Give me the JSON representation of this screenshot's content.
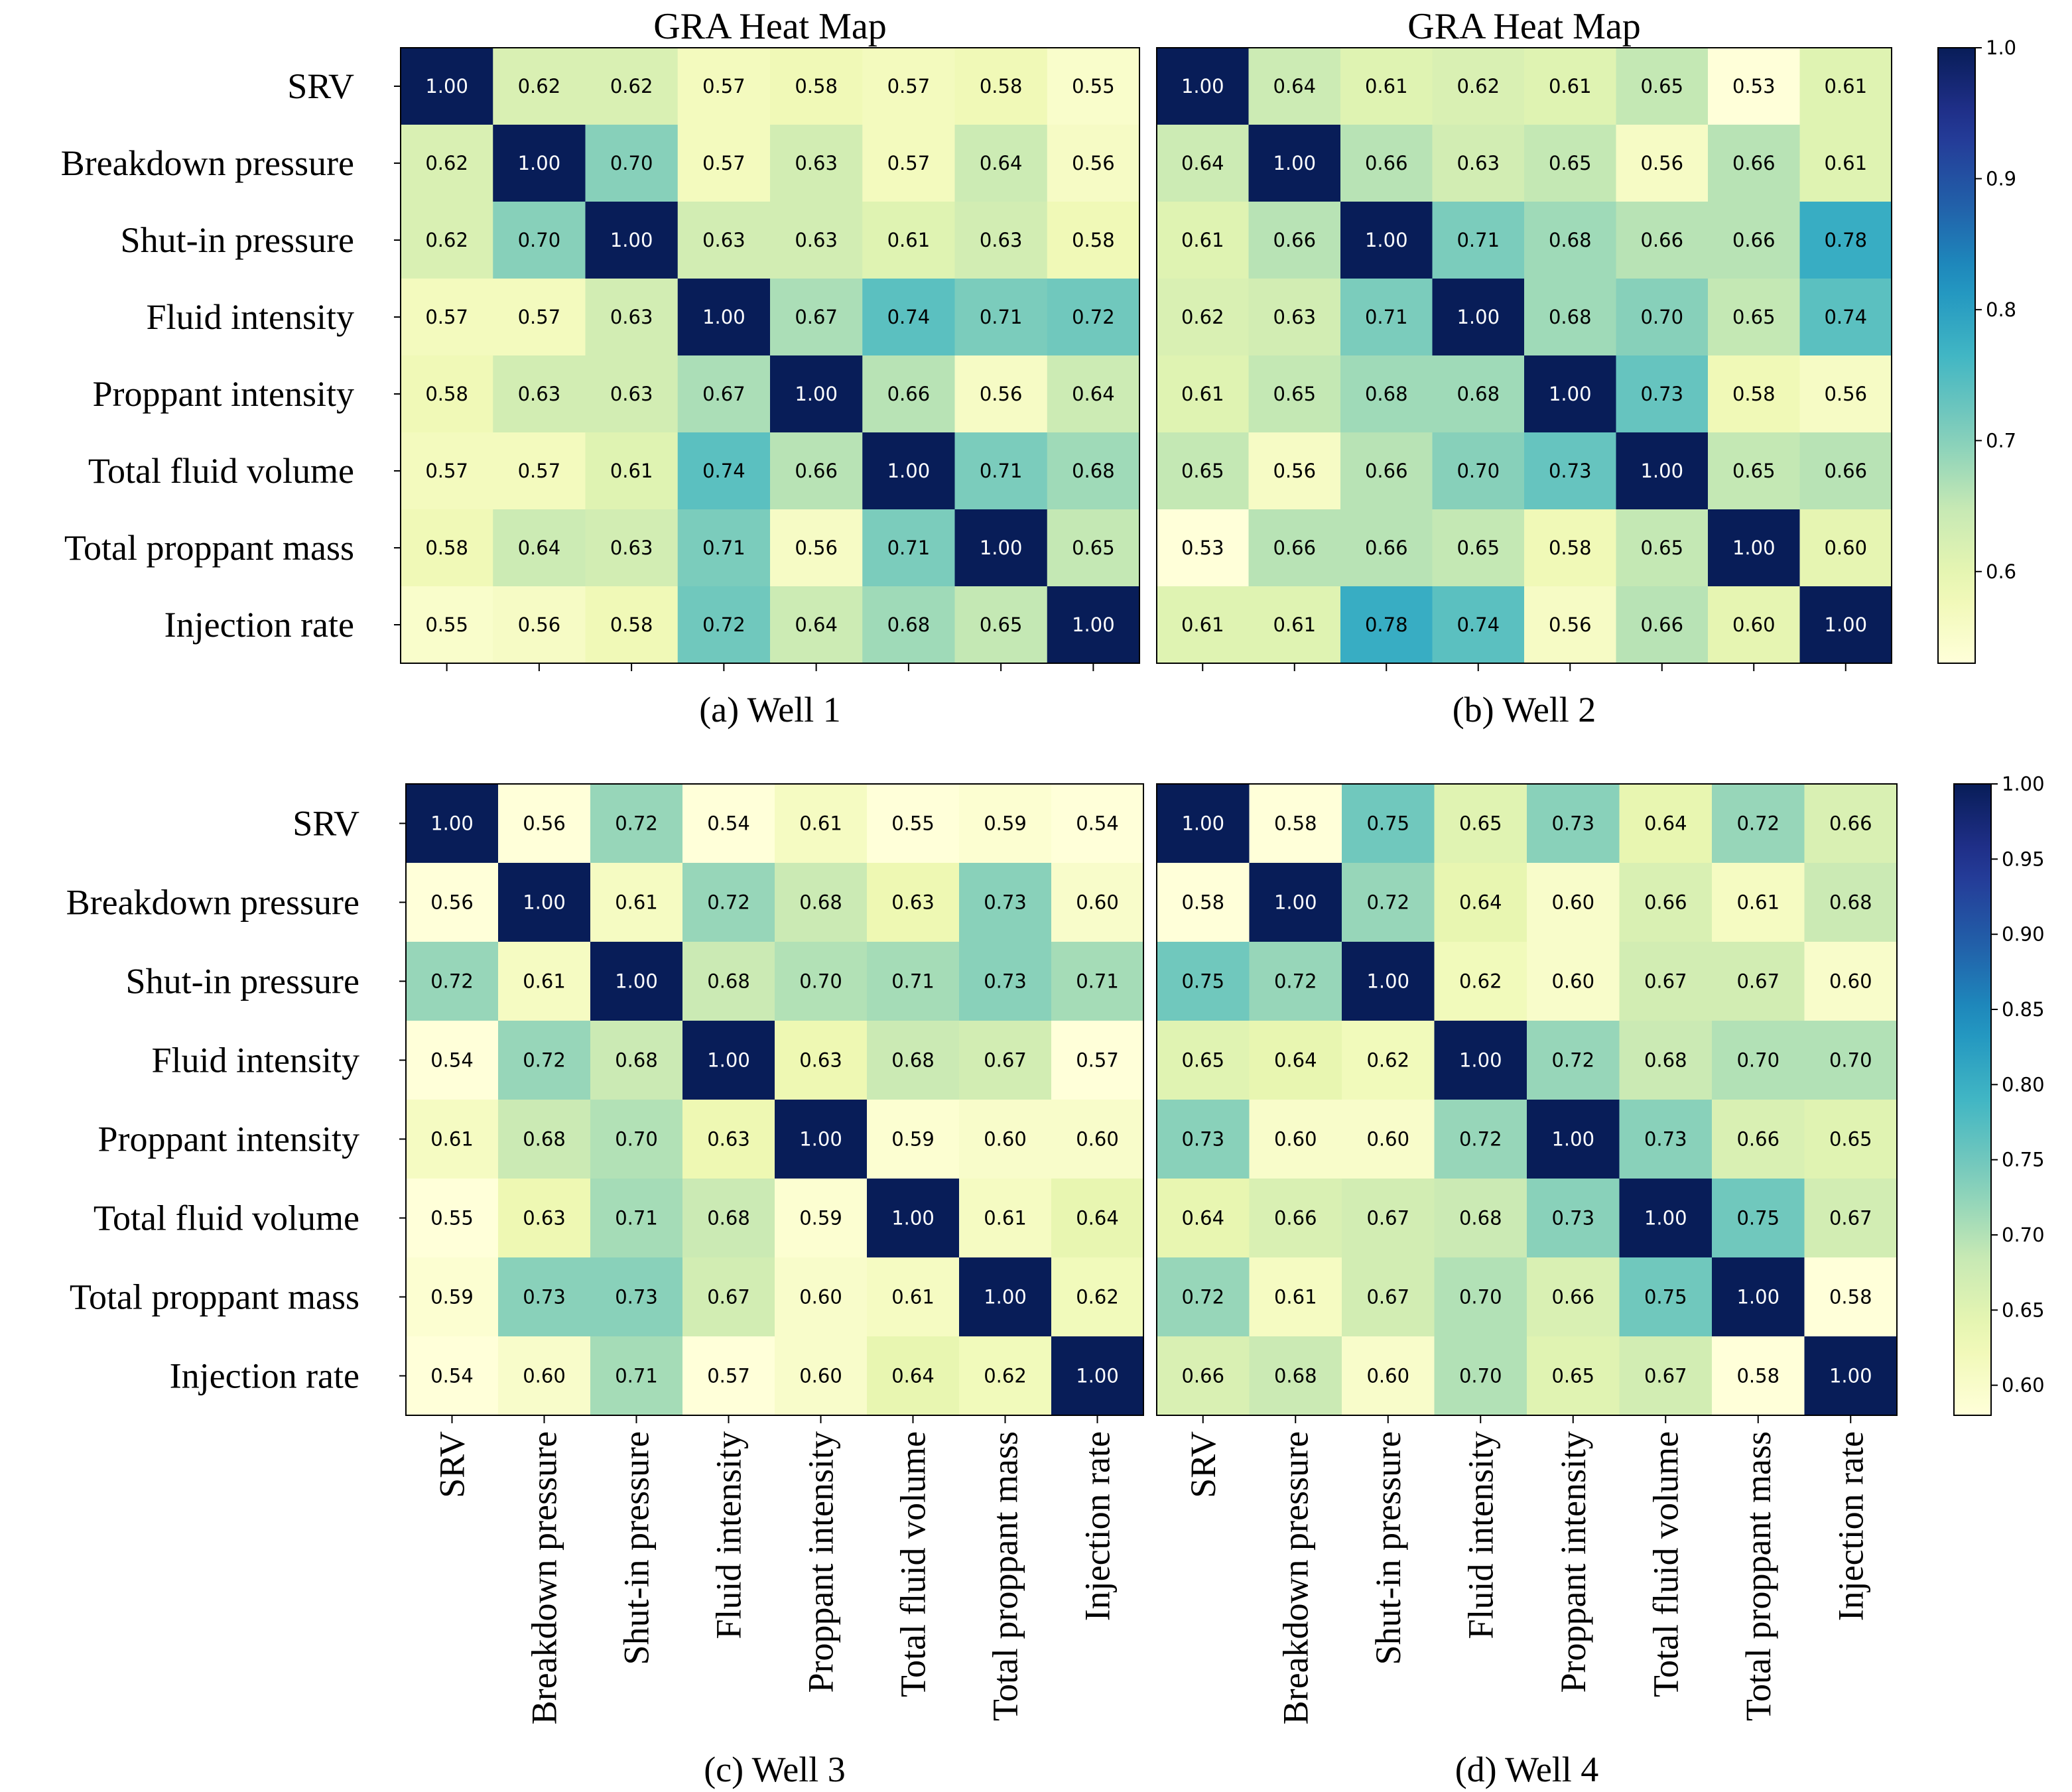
{
  "figure": {
    "variables": [
      "SRV",
      "Breakdown pressure",
      "Shut-in pressure",
      "Fluid intensity",
      "Proppant intensity",
      "Total fluid volume",
      "Total proppant mass",
      "Injection rate"
    ],
    "colormap": [
      "#ffffd9",
      "#edf8b1",
      "#c7e9b4",
      "#7fcdbb",
      "#41b6c4",
      "#1d91c0",
      "#225ea8",
      "#253494",
      "#081d58"
    ]
  },
  "chart_data": [
    {
      "type": "heatmap",
      "title": "GRA Heat Map",
      "caption": "(a) Well 1",
      "value_range": [
        0.53,
        1.0
      ],
      "matrix": [
        [
          1.0,
          0.62,
          0.62,
          0.57,
          0.58,
          0.57,
          0.58,
          0.55
        ],
        [
          0.62,
          1.0,
          0.7,
          0.57,
          0.63,
          0.57,
          0.64,
          0.56
        ],
        [
          0.62,
          0.7,
          1.0,
          0.63,
          0.63,
          0.61,
          0.63,
          0.58
        ],
        [
          0.57,
          0.57,
          0.63,
          1.0,
          0.67,
          0.74,
          0.71,
          0.72
        ],
        [
          0.58,
          0.63,
          0.63,
          0.67,
          1.0,
          0.66,
          0.56,
          0.64
        ],
        [
          0.57,
          0.57,
          0.61,
          0.74,
          0.66,
          1.0,
          0.71,
          0.68
        ],
        [
          0.58,
          0.64,
          0.63,
          0.71,
          0.56,
          0.71,
          1.0,
          0.65
        ],
        [
          0.55,
          0.56,
          0.58,
          0.72,
          0.64,
          0.68,
          0.65,
          1.0
        ]
      ]
    },
    {
      "type": "heatmap",
      "title": "GRA Heat Map",
      "caption": "(b) Well 2",
      "value_range": [
        0.53,
        1.0
      ],
      "matrix": [
        [
          1.0,
          0.64,
          0.61,
          0.62,
          0.61,
          0.65,
          0.53,
          0.61
        ],
        [
          0.64,
          1.0,
          0.66,
          0.63,
          0.65,
          0.56,
          0.66,
          0.61
        ],
        [
          0.61,
          0.66,
          1.0,
          0.71,
          0.68,
          0.66,
          0.66,
          0.78
        ],
        [
          0.62,
          0.63,
          0.71,
          1.0,
          0.68,
          0.7,
          0.65,
          0.74
        ],
        [
          0.61,
          0.65,
          0.68,
          0.68,
          1.0,
          0.73,
          0.58,
          0.56
        ],
        [
          0.65,
          0.56,
          0.66,
          0.7,
          0.73,
          1.0,
          0.65,
          0.66
        ],
        [
          0.53,
          0.66,
          0.66,
          0.65,
          0.58,
          0.65,
          1.0,
          0.6
        ],
        [
          0.61,
          0.61,
          0.78,
          0.74,
          0.56,
          0.66,
          0.6,
          1.0
        ]
      ]
    },
    {
      "type": "heatmap",
      "caption": "(c) Well 3",
      "value_range": [
        0.58,
        1.0
      ],
      "matrix": [
        [
          1.0,
          0.56,
          0.72,
          0.54,
          0.61,
          0.55,
          0.59,
          0.54
        ],
        [
          0.56,
          1.0,
          0.61,
          0.72,
          0.68,
          0.63,
          0.73,
          0.6
        ],
        [
          0.72,
          0.61,
          1.0,
          0.68,
          0.7,
          0.71,
          0.73,
          0.71
        ],
        [
          0.54,
          0.72,
          0.68,
          1.0,
          0.63,
          0.68,
          0.67,
          0.57
        ],
        [
          0.61,
          0.68,
          0.7,
          0.63,
          1.0,
          0.59,
          0.6,
          0.6
        ],
        [
          0.55,
          0.63,
          0.71,
          0.68,
          0.59,
          1.0,
          0.61,
          0.64
        ],
        [
          0.59,
          0.73,
          0.73,
          0.67,
          0.6,
          0.61,
          1.0,
          0.62
        ],
        [
          0.54,
          0.6,
          0.71,
          0.57,
          0.6,
          0.64,
          0.62,
          1.0
        ]
      ]
    },
    {
      "type": "heatmap",
      "caption": "(d) Well 4",
      "value_range": [
        0.58,
        1.0
      ],
      "matrix": [
        [
          1.0,
          0.58,
          0.75,
          0.65,
          0.73,
          0.64,
          0.72,
          0.66
        ],
        [
          0.58,
          1.0,
          0.72,
          0.64,
          0.6,
          0.66,
          0.61,
          0.68
        ],
        [
          0.75,
          0.72,
          1.0,
          0.62,
          0.6,
          0.67,
          0.67,
          0.6
        ],
        [
          0.65,
          0.64,
          0.62,
          1.0,
          0.72,
          0.68,
          0.7,
          0.7
        ],
        [
          0.73,
          0.6,
          0.6,
          0.72,
          1.0,
          0.73,
          0.66,
          0.65
        ],
        [
          0.64,
          0.66,
          0.67,
          0.68,
          0.73,
          1.0,
          0.75,
          0.67
        ],
        [
          0.72,
          0.61,
          0.67,
          0.7,
          0.66,
          0.75,
          1.0,
          0.58
        ],
        [
          0.66,
          0.68,
          0.6,
          0.7,
          0.65,
          0.67,
          0.58,
          1.0
        ]
      ]
    }
  ],
  "colorbars": [
    {
      "range": [
        0.53,
        1.0
      ],
      "ticks": [
        1.0,
        0.9,
        0.8,
        0.7,
        0.6
      ],
      "tick_labels": [
        "1.0",
        "0.9",
        "0.8",
        "0.7",
        "0.6"
      ]
    },
    {
      "range": [
        0.58,
        1.0
      ],
      "ticks": [
        1.0,
        0.95,
        0.9,
        0.85,
        0.8,
        0.75,
        0.7,
        0.65,
        0.6
      ],
      "tick_labels": [
        "1.00",
        "0.95",
        "0.90",
        "0.85",
        "0.80",
        "0.75",
        "0.70",
        "0.65",
        "0.60"
      ]
    }
  ]
}
